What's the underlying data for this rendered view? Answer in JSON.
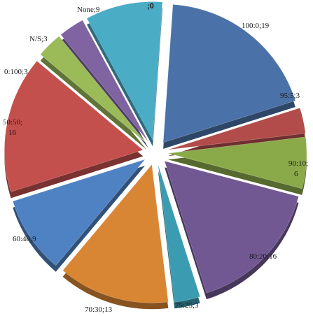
{
  "chart_data": {
    "type": "pie",
    "style": "3d-exploded",
    "legend": "none",
    "slices": [
      {
        "label": "100:0",
        "value": 19,
        "display": "100:0;19",
        "color": "#4a72a8"
      },
      {
        "label": "95:5",
        "value": 3,
        "display": "95:5;3",
        "color": "#b14c4a"
      },
      {
        "label": "90:10",
        "value": 6,
        "display_lines": [
          "90:10;",
          "6"
        ],
        "color": "#8aaa4a"
      },
      {
        "label": "80:20",
        "value": 16,
        "display": "80:20;16",
        "color": "#715893"
      },
      {
        "label": "75:25",
        "value": 3,
        "display": "75:25;3",
        "color": "#3b9bb0"
      },
      {
        "label": "70:30",
        "value": 13,
        "display": "70:30;13",
        "color": "#d98634"
      },
      {
        "label": "60:40",
        "value": 9,
        "display": "60:40;9",
        "color": "#4f82c2"
      },
      {
        "label": "50:50",
        "value": 16,
        "display_lines": [
          "50:50;",
          "16"
        ],
        "color": "#c4504d"
      },
      {
        "label": "0:100",
        "value": 3,
        "display": "0:100;3",
        "color": "#9bbb59"
      },
      {
        "label": "N/S",
        "value": 3,
        "display": "N/S;3",
        "color": "#8064a2"
      },
      {
        "label": "None",
        "value": 9,
        "display": "None;9",
        "color": "#4bacc6"
      },
      {
        "label": "",
        "value": 0,
        "display": ";0",
        "color": "#f79646"
      }
    ]
  }
}
